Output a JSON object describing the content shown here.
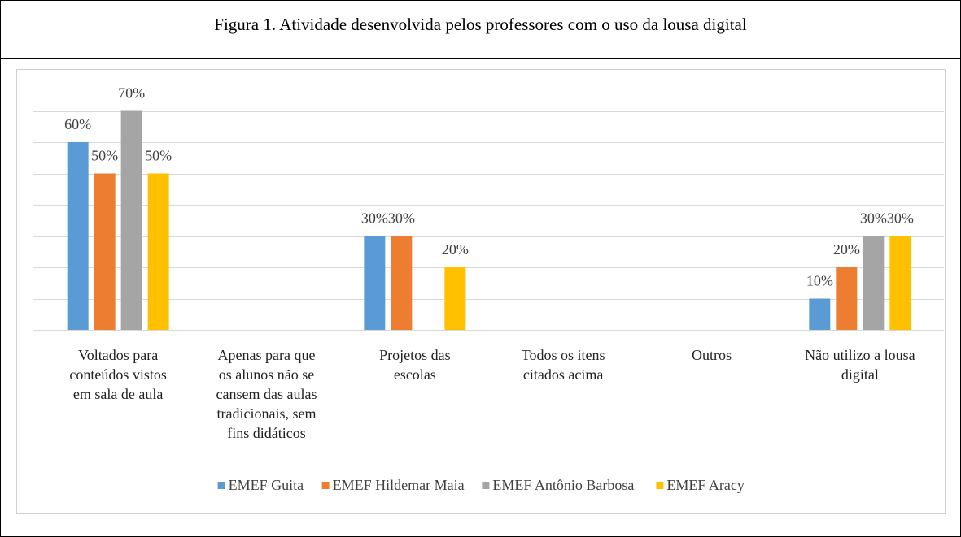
{
  "chart_data": {
    "type": "bar",
    "title": "Figura 1. Atividade desenvolvida pelos professores com o uso da lousa digital",
    "categories": [
      "Voltados para\nconteúdos vistos\nem sala de aula",
      "Apenas para que\nos alunos não se\ncansem das aulas\ntradicionais, sem\nfins didáticos",
      "Projetos das\nescolas",
      "Todos os itens\ncitados acima",
      "Outros",
      "Não utilizo a lousa\ndigital"
    ],
    "series": [
      {
        "name": "EMEF Guita",
        "color": "#5b9bd5",
        "values": [
          60,
          null,
          30,
          null,
          null,
          10
        ],
        "value_labels": [
          "60%",
          null,
          "30%",
          null,
          null,
          "10%"
        ]
      },
      {
        "name": "EMEF Hildemar Maia",
        "color": "#ed7d31",
        "values": [
          50,
          null,
          30,
          null,
          null,
          20
        ],
        "value_labels": [
          "50%",
          null,
          "30%",
          null,
          null,
          "20%"
        ]
      },
      {
        "name": "EMEF Antônio Barbosa",
        "color": "#a5a5a5",
        "values": [
          70,
          null,
          null,
          null,
          null,
          30
        ],
        "value_labels": [
          "70%",
          null,
          null,
          null,
          null,
          "30%"
        ]
      },
      {
        "name": "EMEF Aracy",
        "color": "#ffc000",
        "values": [
          50,
          null,
          20,
          null,
          null,
          30
        ],
        "value_labels": [
          "50%",
          null,
          "20%",
          null,
          null,
          "30%"
        ]
      }
    ],
    "ylim": [
      0,
      80
    ],
    "yticks": [
      0,
      10,
      20,
      30,
      40,
      50,
      60,
      70,
      80
    ],
    "grid": true,
    "legend": "bottom"
  }
}
